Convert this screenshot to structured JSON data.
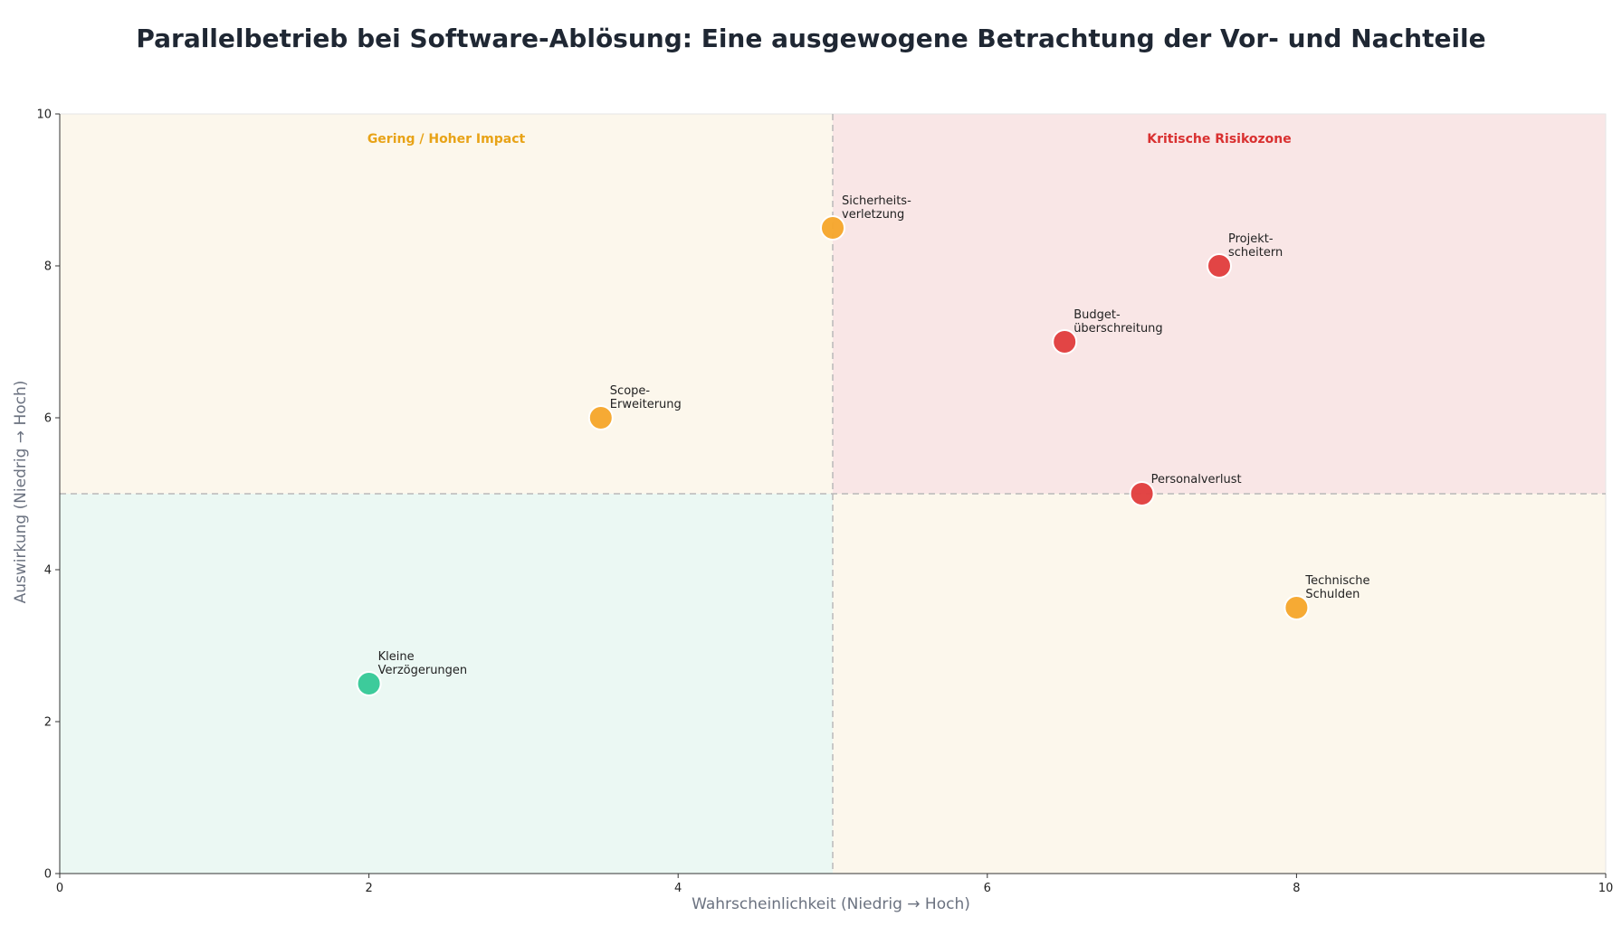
{
  "chart_data": {
    "type": "scatter",
    "title": "Parallelbetrieb bei Software-Ablösung: Eine ausgewogene Betrachtung der Vor- und Nachteile",
    "xlabel": "Wahrscheinlichkeit (Niedrig → Hoch)",
    "ylabel": "Auswirkung (Niedrig → Hoch)",
    "xlim": [
      0,
      10
    ],
    "ylim": [
      0,
      10
    ],
    "xticks": [
      0,
      2,
      4,
      6,
      8,
      10
    ],
    "yticks": [
      0,
      2,
      4,
      6,
      8,
      10
    ],
    "grid": false,
    "threshold": {
      "x": 5,
      "y": 5
    },
    "quadrants": [
      {
        "position": "top-left",
        "label": "Gering / Hoher Impact",
        "fill": "#fcf7ec",
        "label_color": "#e8a317"
      },
      {
        "position": "top-right",
        "label": "Kritische Risikozone",
        "fill": "#f9e6e6",
        "label_color": "#d93030"
      },
      {
        "position": "bottom-left",
        "label": "",
        "fill": "#ebf8f3",
        "label_color": ""
      },
      {
        "position": "bottom-right",
        "label": "",
        "fill": "#fcf7ec",
        "label_color": ""
      }
    ],
    "points": [
      {
        "x": 2.0,
        "y": 2.5,
        "label": [
          "Kleine",
          "Verzögerungen"
        ],
        "color": "#34c896"
      },
      {
        "x": 3.5,
        "y": 6.0,
        "label": [
          "Scope-",
          "Erweiterung"
        ],
        "color": "#f6a52a"
      },
      {
        "x": 5.0,
        "y": 8.5,
        "label": [
          "Sicherheits-",
          "verletzung"
        ],
        "color": "#f6a52a"
      },
      {
        "x": 6.5,
        "y": 7.0,
        "label": [
          "Budget-",
          "überschreitung"
        ],
        "color": "#e03c3c"
      },
      {
        "x": 7.5,
        "y": 8.0,
        "label": [
          "Projekt-",
          "scheitern"
        ],
        "color": "#e03c3c"
      },
      {
        "x": 7.0,
        "y": 5.0,
        "label": [
          "Personalverlust"
        ],
        "color": "#e03c3c"
      },
      {
        "x": 8.0,
        "y": 3.5,
        "label": [
          "Technische",
          "Schulden"
        ],
        "color": "#f6a52a"
      }
    ]
  }
}
